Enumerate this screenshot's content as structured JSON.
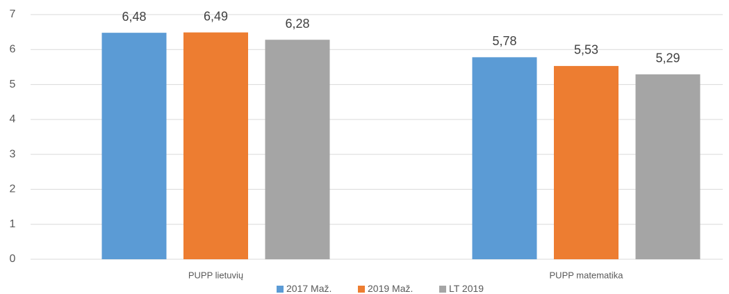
{
  "chart_data": {
    "type": "bar",
    "categories": [
      "PUPP lietuvių",
      "PUPP matematika"
    ],
    "series": [
      {
        "name": "2017 Maž.",
        "color": "#5b9bd5",
        "values": [
          6.48,
          5.78
        ],
        "value_labels": [
          "6,48",
          "5,78"
        ]
      },
      {
        "name": "2019 Maž.",
        "color": "#ed7d31",
        "values": [
          6.49,
          5.53
        ],
        "value_labels": [
          "6,49",
          "5,53"
        ]
      },
      {
        "name": "LT 2019",
        "color": "#a5a5a5",
        "values": [
          6.28,
          5.29
        ],
        "value_labels": [
          "6,28",
          "5,29"
        ]
      }
    ],
    "ylim": [
      0,
      7
    ],
    "yticks": [
      0,
      1,
      2,
      3,
      4,
      5,
      6,
      7
    ],
    "grid": true,
    "legend": "bottom"
  }
}
